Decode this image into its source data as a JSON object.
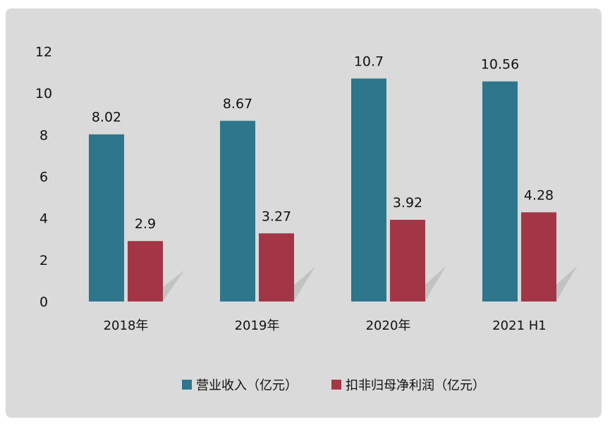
{
  "chart_data": {
    "type": "bar",
    "title": "",
    "xlabel": "",
    "ylabel": "",
    "categories": [
      "2018年",
      "2019年",
      "2020年",
      "2021 H1"
    ],
    "series": [
      {
        "name": "营业收入（亿元）",
        "color": "#2e768c",
        "values": [
          8.02,
          8.67,
          10.7,
          10.56
        ],
        "labels": [
          "8.02",
          "8.67",
          "10.7",
          "10.56"
        ]
      },
      {
        "name": "扣非归母净利润（亿元）",
        "color": "#a23646",
        "values": [
          2.9,
          3.27,
          3.92,
          4.28
        ],
        "labels": [
          "2.9",
          "3.27",
          "3.92",
          "4.28"
        ]
      }
    ],
    "ylim": [
      0,
      12
    ],
    "yticks": [
      "0",
      "2",
      "4",
      "6",
      "8",
      "10",
      "12"
    ],
    "grid": false,
    "legend": "bottom",
    "background": "#dadada"
  }
}
